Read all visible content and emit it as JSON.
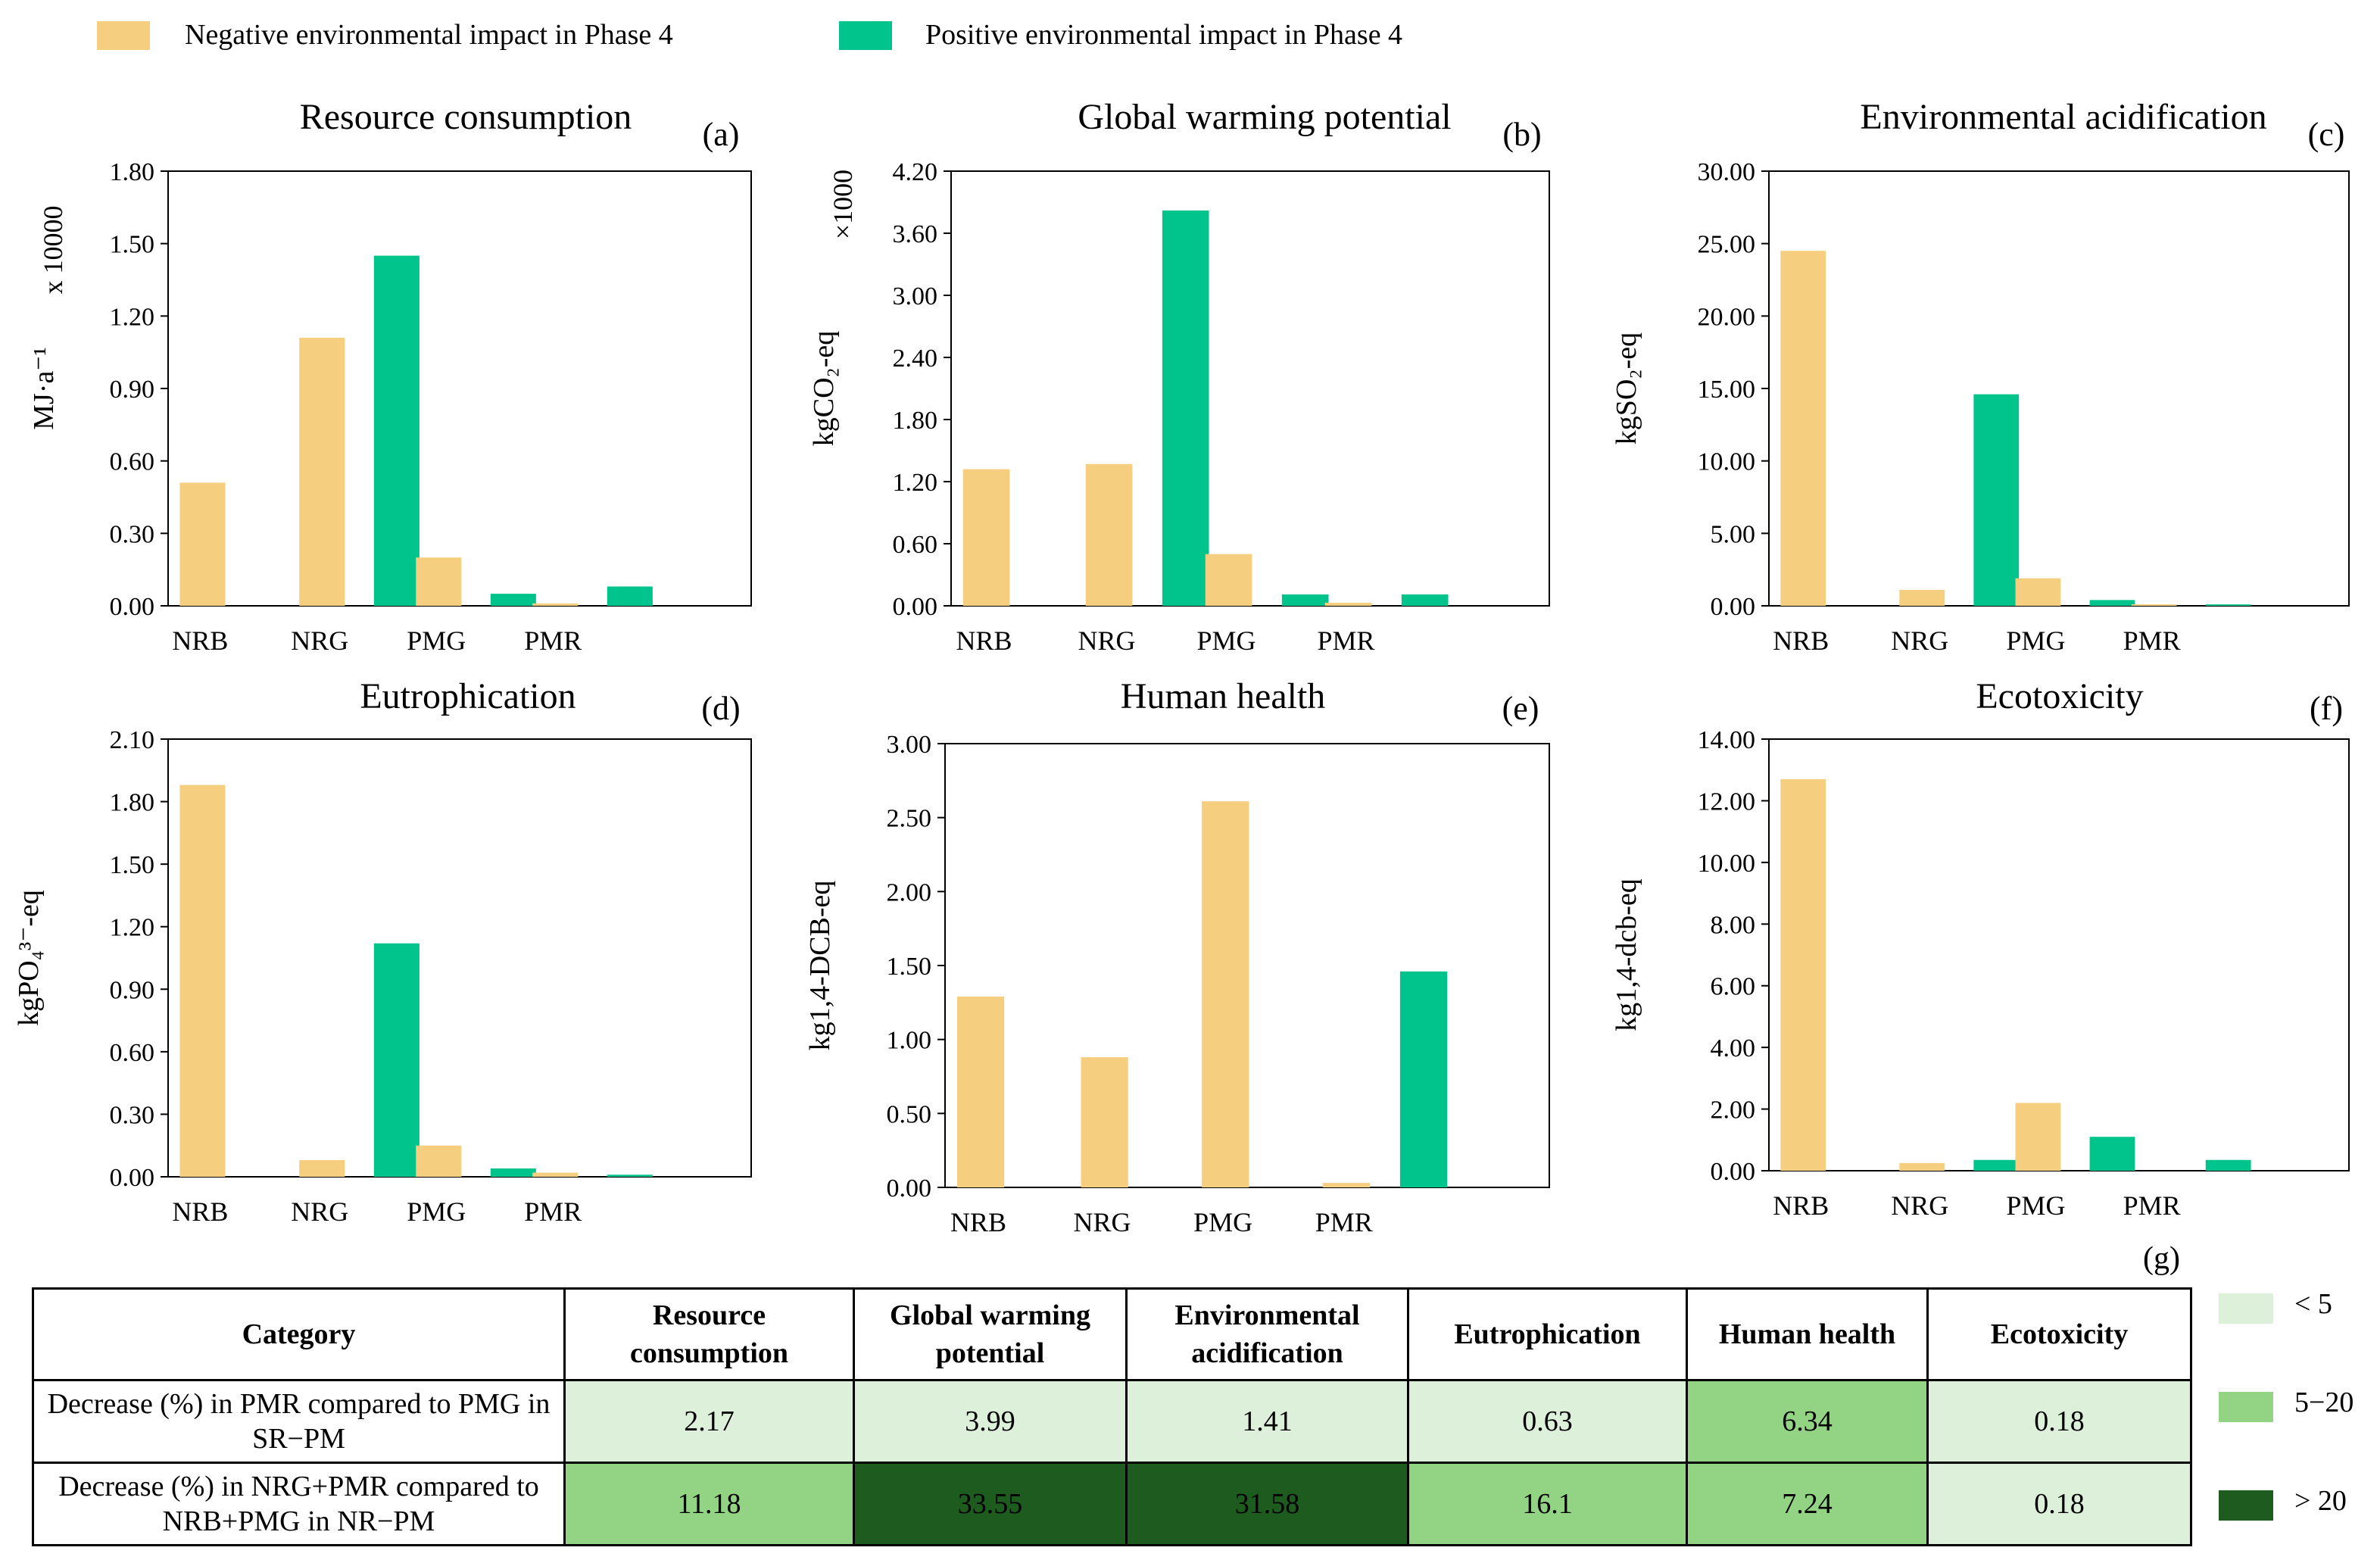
{
  "legend": {
    "negative_label": "Negative environmental impact in Phase 4",
    "positive_label": "Positive environmental impact in Phase 4",
    "negative_color": "#F5CE7F",
    "positive_color": "#00C48C"
  },
  "chart_data": [
    {
      "type": "bar",
      "panel": "(a)",
      "title": "Resource consumption",
      "ylabel": "MJ·a⁻¹",
      "multiplier": "x 10000",
      "categories": [
        "NRB",
        "NRG",
        "PMG",
        "PMR"
      ],
      "ylim": [
        0,
        1.8
      ],
      "yticks": [
        "0.00",
        "0.30",
        "0.60",
        "0.90",
        "1.20",
        "1.50",
        "1.80"
      ],
      "series": [
        {
          "name": "Negative environmental impact in Phase 4",
          "values": [
            0.51,
            1.11,
            0.2,
            0.01
          ]
        },
        {
          "name": "Positive environmental impact in Phase 4",
          "values": [
            0,
            1.45,
            0.05,
            0.08
          ]
        }
      ]
    },
    {
      "type": "bar",
      "panel": "(b)",
      "title": "Global warming potential",
      "ylabel": "kgCO₂-eq",
      "multiplier": "×1000",
      "categories": [
        "NRB",
        "NRG",
        "PMG",
        "PMR"
      ],
      "ylim": [
        0,
        4.2
      ],
      "yticks": [
        "0.00",
        "0.60",
        "1.20",
        "1.80",
        "2.40",
        "3.00",
        "3.60",
        "4.20"
      ],
      "series": [
        {
          "name": "Negative environmental impact in Phase 4",
          "values": [
            1.32,
            1.37,
            0.5,
            0.03
          ]
        },
        {
          "name": "Positive environmental impact in Phase 4",
          "values": [
            0,
            3.82,
            0.11,
            0.11
          ]
        }
      ]
    },
    {
      "type": "bar",
      "panel": "(c)",
      "title": "Environmental acidification",
      "ylabel": "kgSO₂-eq",
      "multiplier": "",
      "categories": [
        "NRB",
        "NRG",
        "PMG",
        "PMR"
      ],
      "ylim": [
        0,
        30
      ],
      "yticks": [
        "0.00",
        "5.00",
        "10.00",
        "15.00",
        "20.00",
        "25.00",
        "30.00"
      ],
      "series": [
        {
          "name": "Negative environmental impact in Phase 4",
          "values": [
            24.5,
            1.1,
            1.9,
            0.1
          ]
        },
        {
          "name": "Positive environmental impact in Phase 4",
          "values": [
            0,
            14.6,
            0.4,
            0.1
          ]
        }
      ]
    },
    {
      "type": "bar",
      "panel": "(d)",
      "title": "Eutrophication",
      "ylabel": "kgPO₄³⁻-eq",
      "multiplier": "",
      "categories": [
        "NRB",
        "NRG",
        "PMG",
        "PMR"
      ],
      "ylim": [
        0,
        2.1
      ],
      "yticks": [
        "0.00",
        "0.30",
        "0.60",
        "0.90",
        "1.20",
        "1.50",
        "1.80",
        "2.10"
      ],
      "series": [
        {
          "name": "Negative environmental impact in Phase 4",
          "values": [
            1.88,
            0.08,
            0.15,
            0.02
          ]
        },
        {
          "name": "Positive environmental impact in Phase 4",
          "values": [
            0,
            1.12,
            0.04,
            0.01
          ]
        }
      ]
    },
    {
      "type": "bar",
      "panel": "(e)",
      "title": "Human health",
      "ylabel": "kg1,4-DCB-eq",
      "multiplier": "",
      "categories": [
        "NRB",
        "NRG",
        "PMG",
        "PMR"
      ],
      "ylim": [
        0,
        3
      ],
      "yticks": [
        "0.00",
        "0.50",
        "1.00",
        "1.50",
        "2.00",
        "2.50",
        "3.00"
      ],
      "series": [
        {
          "name": "Negative environmental impact in Phase 4",
          "values": [
            1.29,
            0.88,
            2.61,
            0.03
          ]
        },
        {
          "name": "Positive environmental impact in Phase 4",
          "values": [
            0,
            0,
            0,
            1.46
          ]
        }
      ]
    },
    {
      "type": "bar",
      "panel": "(f)",
      "title": "Ecotoxicity",
      "ylabel": "kg1,4-dcb-eq",
      "multiplier": "",
      "categories": [
        "NRB",
        "NRG",
        "PMG",
        "PMR"
      ],
      "ylim": [
        0,
        14
      ],
      "yticks": [
        "0.00",
        "2.00",
        "4.00",
        "6.00",
        "8.00",
        "10.00",
        "12.00",
        "14.00"
      ],
      "series": [
        {
          "name": "Negative environmental impact in Phase 4",
          "values": [
            12.7,
            0.25,
            2.2,
            0
          ]
        },
        {
          "name": "Positive environmental impact in Phase 4",
          "values": [
            0,
            0.35,
            1.1,
            0.35
          ]
        }
      ]
    },
    {
      "type": "table",
      "panel": "(g)",
      "columns": [
        "Category",
        "Resource consumption",
        "Global warming potential",
        "Environmental acidification",
        "Eutrophication",
        "Human health",
        "Ecotoxicity"
      ],
      "rows": [
        {
          "label": "Decrease (%) in PMR compared to PMG in SR−PM",
          "values": [
            "2.17",
            "3.99",
            "1.41",
            "0.63",
            "6.34",
            "0.18"
          ]
        },
        {
          "label": "Decrease (%) in NRG+PMR compared to NRB+PMG in NR−PM",
          "values": [
            "11.18",
            "33.55",
            "31.58",
            "16.1",
            "7.24",
            "0.18"
          ]
        }
      ],
      "color_key": [
        {
          "label": "< 5",
          "color": "#DDF0DA"
        },
        {
          "label": "5−20",
          "color": "#92D483"
        },
        {
          "label": "> 20",
          "color": "#1E5B1F"
        }
      ]
    }
  ]
}
